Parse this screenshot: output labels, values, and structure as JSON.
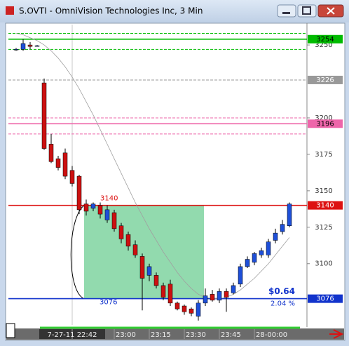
{
  "window": {
    "title": "S.OVTI - OmniVision Technologies Inc, 3 Min"
  },
  "chart_data": {
    "type": "candlestick",
    "categories": [
      null,
      null,
      null,
      null,
      null,
      null,
      null,
      null,
      "7-27-11 22:42",
      null,
      null,
      null,
      null,
      null,
      "23:00",
      null,
      null,
      null,
      null,
      "23:15",
      null,
      null,
      null,
      null,
      "23:30",
      null,
      null,
      null,
      null,
      "23:45",
      null,
      null,
      null,
      null,
      "28-00:00",
      null,
      null,
      null,
      null,
      null
    ],
    "open": [
      3247,
      3247,
      3250,
      3249.5,
      3224,
      3182,
      3172,
      3176,
      3164,
      3160,
      3141,
      3138,
      3140,
      3130,
      3135,
      3126,
      3120,
      3113,
      3105,
      3092,
      3092,
      3085,
      3086,
      3073,
      3071,
      3069,
      3064,
      3073,
      3079,
      3075,
      3081,
      3080,
      3086,
      3098,
      3101,
      3106,
      3106,
      3116,
      3122,
      3126
    ],
    "high": [
      3248,
      3254,
      3252,
      3250,
      3227,
      3189,
      3174,
      3179,
      3167,
      3161,
      3144,
      3142,
      3142,
      3140,
      3137,
      3128,
      3122,
      3116,
      3107,
      3100,
      3094,
      3087,
      3089,
      3074,
      3072,
      3070,
      3075,
      3083,
      3082,
      3083,
      3083,
      3087,
      3100,
      3105,
      3108,
      3111,
      3117,
      3124,
      3130,
      3142
    ],
    "low": [
      3246,
      3246,
      3247,
      3249,
      3178,
      3169,
      3164,
      3158,
      3153,
      3134,
      3133,
      3136,
      3131,
      3128,
      3122,
      3114,
      3109,
      3104,
      3068,
      3088,
      3083,
      3075,
      3071,
      3068,
      3065,
      3064,
      3061,
      3071,
      3074,
      3073,
      3067,
      3079,
      3084,
      3097,
      3099,
      3104,
      3104,
      3114,
      3120,
      3125
    ],
    "close": [
      3247,
      3251,
      3249,
      3249.5,
      3179,
      3170,
      3166,
      3160,
      3155,
      3137,
      3136,
      3141,
      3134,
      3137,
      3124,
      3117,
      3112,
      3106,
      3090,
      3098,
      3085,
      3077,
      3073,
      3069,
      3067,
      3066,
      3073,
      3078,
      3075,
      3081,
      3077,
      3085,
      3098,
      3103,
      3107,
      3109,
      3115,
      3121,
      3127,
      3141
    ],
    "up_color": "#1e4fd8",
    "down_color": "#cc1010",
    "overlay": {
      "color": "#a0a0a0",
      "values": [
        3258,
        3257,
        3255,
        3253,
        3250,
        3246,
        3241,
        3235,
        3228,
        3220,
        3211,
        3202,
        3192,
        3182,
        3172,
        3162,
        3152,
        3142,
        3133,
        3124,
        3116,
        3108,
        3101,
        3094,
        3088,
        3083,
        3079,
        3077,
        3076,
        3076,
        3077,
        3079,
        3082,
        3086,
        3090,
        3095,
        3100,
        3106,
        3112,
        3118
      ]
    },
    "ylim": [
      3058,
      3264
    ],
    "yticks": [
      3100,
      3125,
      3150,
      3175,
      3200,
      3250
    ],
    "levels": [
      {
        "value": 3258,
        "color": "#00bb00",
        "style": "dashed"
      },
      {
        "value": 3254,
        "color": "#00bb00",
        "style": "solid",
        "label": 3254
      },
      {
        "value": 3247,
        "color": "#00bb00",
        "style": "dashed"
      },
      {
        "value": 3226,
        "color": "#999999",
        "style": "dashed",
        "label": 3226
      },
      {
        "value": 3200,
        "color": "#ee66aa",
        "style": "dashed"
      },
      {
        "value": 3196,
        "color": "#ee66aa",
        "style": "solid",
        "label": 3196
      },
      {
        "value": 3189,
        "color": "#ee66aa",
        "style": "dashed"
      },
      {
        "value": 3140,
        "color": "#dd1111",
        "style": "solid",
        "label": 3140
      },
      {
        "value": 3076,
        "color": "#1133cc",
        "style": "solid",
        "label": 3076
      }
    ],
    "measure": {
      "high": 3140,
      "low": 3076,
      "color": "#7fd4a0",
      "change": {
        "value": 0.64,
        "label": "$0.64"
      },
      "percent": {
        "value": 2.04,
        "label": "2.04 %"
      }
    }
  }
}
